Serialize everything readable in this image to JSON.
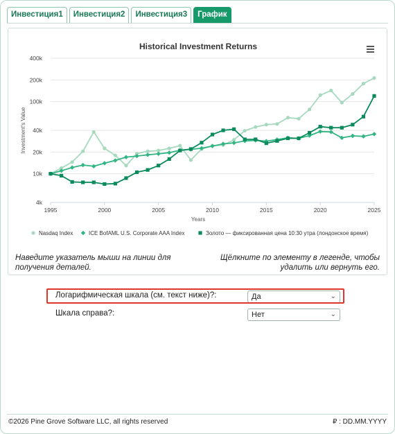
{
  "tabs": [
    {
      "label": "Инвестиция1"
    },
    {
      "label": "Инвестиция2"
    },
    {
      "label": "Инвестиция3"
    },
    {
      "label": "График"
    }
  ],
  "chart_data": {
    "type": "line",
    "title": "Historical Investment Returns",
    "xlabel": "Years",
    "ylabel": "Investment's Value",
    "yscale": "log",
    "xlim": [
      1995,
      2025
    ],
    "ylim": [
      4000,
      400000
    ],
    "xticks": [
      1995,
      2000,
      2005,
      2010,
      2015,
      2020,
      2025
    ],
    "yticks": [
      {
        "value": 4000,
        "label": "4k"
      },
      {
        "value": 10000,
        "label": "10k"
      },
      {
        "value": 20000,
        "label": "20k"
      },
      {
        "value": 40000,
        "label": "40k"
      },
      {
        "value": 100000,
        "label": "100k"
      },
      {
        "value": 200000,
        "label": "200k"
      },
      {
        "value": 400000,
        "label": "400k"
      }
    ],
    "grid": "horizontal",
    "legend_position": "bottom",
    "x": [
      1995,
      1996,
      1997,
      1998,
      1999,
      2000,
      2001,
      2002,
      2003,
      2004,
      2005,
      2006,
      2007,
      2008,
      2009,
      2010,
      2011,
      2012,
      2013,
      2014,
      2015,
      2016,
      2017,
      2018,
      2019,
      2020,
      2021,
      2022,
      2023,
      2024,
      2025
    ],
    "series": [
      {
        "name": "Nasdaq Index",
        "color": "#a7d9bf",
        "marker": "circle",
        "values": [
          10000,
          12000,
          14500,
          20500,
          38000,
          22500,
          18000,
          13000,
          19000,
          20500,
          21000,
          22500,
          24500,
          15500,
          22000,
          24500,
          25000,
          29500,
          39500,
          44500,
          48000,
          49000,
          60000,
          58000,
          78000,
          123000,
          143000,
          97000,
          128000,
          178000,
          213000
        ]
      },
      {
        "name": "ICE BofAML U.S. Corporate AAA Index",
        "color": "#33b583",
        "marker": "diamond",
        "values": [
          10000,
          11000,
          12200,
          13200,
          12700,
          14000,
          15300,
          17000,
          17600,
          18300,
          18900,
          19600,
          21200,
          21800,
          22600,
          24200,
          26000,
          26800,
          28500,
          29000,
          28300,
          29800,
          31500,
          31000,
          33800,
          38500,
          38000,
          31500,
          33500,
          33000,
          35500
        ]
      },
      {
        "name": "Золото — фиксированная цена 10:30 утра (лондонское время)",
        "color": "#0b8a5b",
        "marker": "square",
        "values": [
          10000,
          9400,
          7700,
          7600,
          7600,
          7200,
          7300,
          8700,
          10500,
          11300,
          13000,
          16000,
          21000,
          22000,
          27000,
          35000,
          40000,
          41500,
          30000,
          30000,
          26500,
          28500,
          31000,
          31000,
          37000,
          45000,
          43500,
          43500,
          48000,
          62000,
          120000
        ]
      }
    ]
  },
  "hints": {
    "left": "Наведите указатель мыши на линии для получения деталей.",
    "right": "Щёлкните по элементу в легенде, чтобы удалить или вернуть его."
  },
  "form": {
    "log_scale_label": "Логарифмическая шкала (см. текст ниже)?:",
    "log_scale_value": "Да",
    "right_axis_label": "Шкала справа?:",
    "right_axis_value": "Нет"
  },
  "footer": {
    "copyright": "©2026 Pine Grove Software LLC, all rights reserved",
    "date": "₽ : DD.MM.YYYY"
  },
  "icons": {
    "menu": "hamburger-menu-icon",
    "chevron": "chevron-down-icon"
  }
}
